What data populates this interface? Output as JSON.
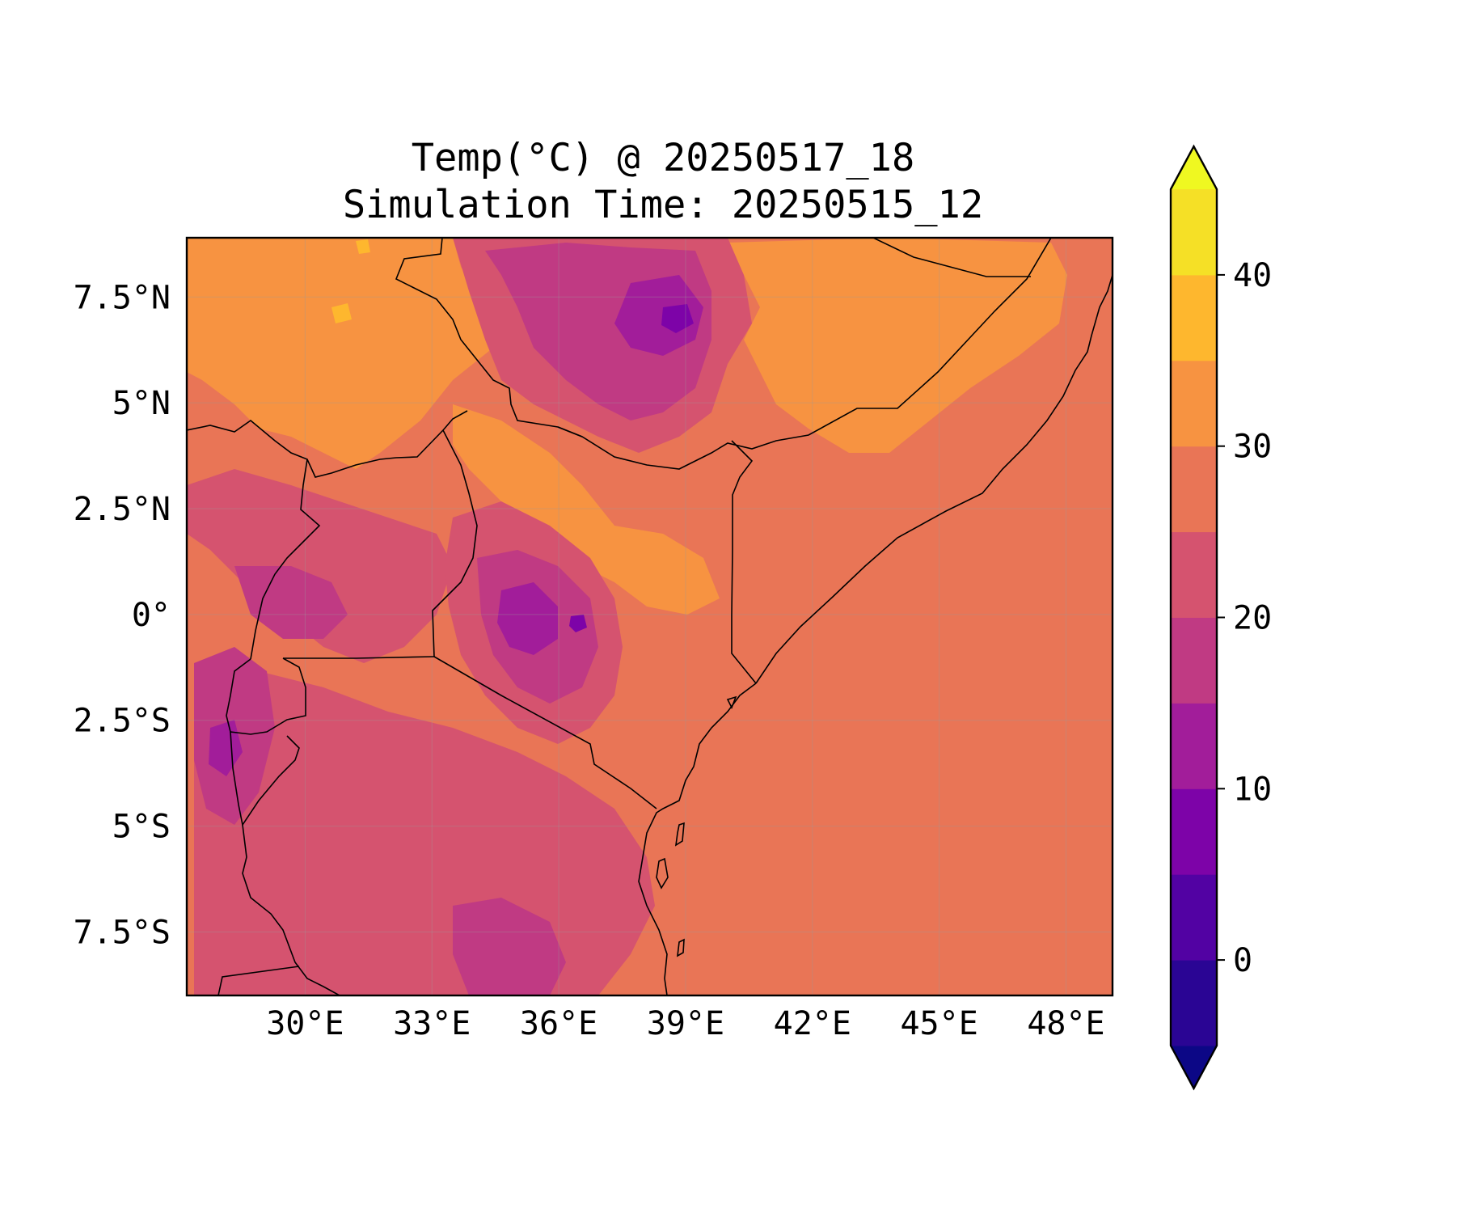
{
  "title": {
    "line1": "Temp(°C) @ 20250517_18",
    "line2": "Simulation Time: 20250515_12"
  },
  "map": {
    "lon_range": [
      27.2,
      49.1
    ],
    "lat_range": [
      -9.0,
      8.9
    ],
    "lon_ticks": [
      {
        "value": 30,
        "label": "30°E"
      },
      {
        "value": 33,
        "label": "33°E"
      },
      {
        "value": 36,
        "label": "36°E"
      },
      {
        "value": 39,
        "label": "39°E"
      },
      {
        "value": 42,
        "label": "42°E"
      },
      {
        "value": 45,
        "label": "45°E"
      },
      {
        "value": 48,
        "label": "48°E"
      }
    ],
    "lat_ticks": [
      {
        "value": 7.5,
        "label": "7.5°N"
      },
      {
        "value": 5,
        "label": "5°N"
      },
      {
        "value": 2.5,
        "label": "2.5°N"
      },
      {
        "value": 0,
        "label": "0°"
      },
      {
        "value": -2.5,
        "label": "2.5°S"
      },
      {
        "value": -5,
        "label": "5°S"
      },
      {
        "value": -7.5,
        "label": "7.5°S"
      }
    ],
    "gridlines": true,
    "background_level_color": "#e97556"
  },
  "colorbar": {
    "min": -5,
    "max": 45,
    "extend": "both",
    "bounds": [
      -5,
      0,
      5,
      10,
      15,
      20,
      25,
      30,
      35,
      40,
      45
    ],
    "colors": [
      "#2a0594",
      "#5202a3",
      "#7d03a8",
      "#a21d9a",
      "#c03a83",
      "#d5536f",
      "#e97556",
      "#f79341",
      "#feb72e",
      "#f5e026"
    ],
    "under_color": "#0c0786",
    "over_color": "#eff821",
    "ticks": [
      {
        "value": 0,
        "label": "0"
      },
      {
        "value": 10,
        "label": "10"
      },
      {
        "value": 20,
        "label": "20"
      },
      {
        "value": 30,
        "label": "30"
      },
      {
        "value": 40,
        "label": "40"
      }
    ]
  }
}
